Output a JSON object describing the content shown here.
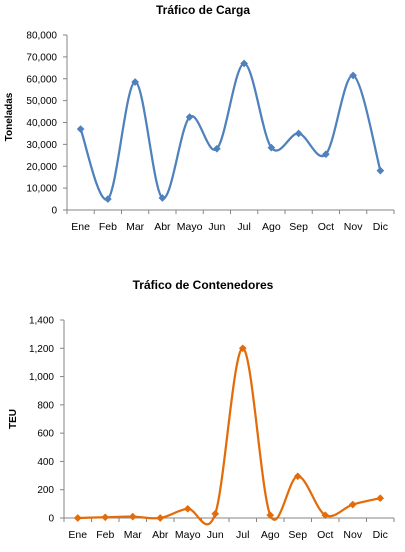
{
  "chart_data": [
    {
      "type": "line",
      "title": "Tráfico de Carga",
      "ylabel": "Toneladas",
      "xlabel": "",
      "categories": [
        "Ene",
        "Feb",
        "Mar",
        "Abr",
        "Mayo",
        "Jun",
        "Jul",
        "Ago",
        "Sep",
        "Oct",
        "Nov",
        "Dic"
      ],
      "series": [
        {
          "values": [
            37000,
            5000,
            58500,
            5500,
            42500,
            28000,
            67000,
            28500,
            35000,
            25500,
            61500,
            18000
          ]
        }
      ],
      "ylim": [
        0,
        80000
      ],
      "yticks": [
        "0",
        "10,000",
        "20,000",
        "30,000",
        "40,000",
        "50,000",
        "60,000",
        "70,000",
        "80,000"
      ],
      "grid": false,
      "smooth": true,
      "color": "#4f81bd"
    },
    {
      "type": "line",
      "title": "Tráfico de Contenedores",
      "ylabel": "TEU",
      "xlabel": "",
      "categories": [
        "Ene",
        "Feb",
        "Mar",
        "Abr",
        "Mayo",
        "Jun",
        "Jul",
        "Ago",
        "Sep",
        "Oct",
        "Nov",
        "Dic"
      ],
      "series": [
        {
          "values": [
            0,
            5,
            10,
            0,
            65,
            30,
            1200,
            20,
            295,
            20,
            95,
            140
          ]
        }
      ],
      "ylim": [
        0,
        1400
      ],
      "yticks": [
        "0",
        "200",
        "400",
        "600",
        "800",
        "1,000",
        "1,200",
        "1,400"
      ],
      "grid": false,
      "smooth": true,
      "color": "#e36c0a"
    }
  ]
}
